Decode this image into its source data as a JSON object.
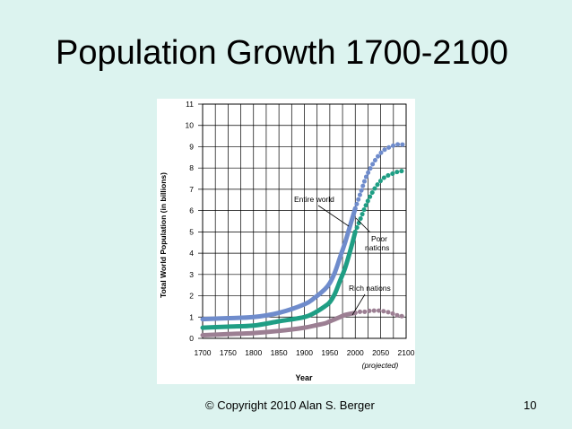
{
  "slide": {
    "title": "Population Growth 1700-2100",
    "footer": "© Copyright 2010 Alan S. Berger",
    "page_number": "10"
  },
  "chart_data": {
    "type": "line",
    "title": "",
    "xlabel": "Year",
    "ylabel": "Total World Population (in billions)",
    "xlim": [
      1700,
      2100
    ],
    "ylim": [
      0,
      11
    ],
    "x_ticks": [
      1700,
      1750,
      1800,
      1850,
      1900,
      1950,
      2000,
      2050,
      2100
    ],
    "y_ticks": [
      0,
      1,
      2,
      3,
      4,
      5,
      6,
      7,
      8,
      9,
      10,
      11
    ],
    "grid": true,
    "projected_label": "(projected)",
    "projected_from": 2000,
    "series": [
      {
        "name": "Entire world",
        "color": "#6f8ccc",
        "x": [
          1700,
          1750,
          1800,
          1850,
          1900,
          1920,
          1940,
          1950,
          1960,
          1970,
          1980,
          1990,
          2000,
          2010,
          2020,
          2030,
          2040,
          2050,
          2060,
          2070,
          2080,
          2090,
          2100
        ],
        "y": [
          0.9,
          0.95,
          1.0,
          1.2,
          1.6,
          1.9,
          2.3,
          2.6,
          3.1,
          3.8,
          4.5,
          5.3,
          6.1,
          6.8,
          7.5,
          8.0,
          8.4,
          8.7,
          8.9,
          9.0,
          9.1,
          9.1,
          9.1
        ]
      },
      {
        "name": "Poor nations",
        "color": "#1f9e84",
        "x": [
          1700,
          1750,
          1800,
          1850,
          1900,
          1920,
          1940,
          1950,
          1960,
          1970,
          1980,
          1990,
          2000,
          2010,
          2020,
          2030,
          2040,
          2050,
          2060,
          2070,
          2080,
          2090,
          2100
        ],
        "y": [
          0.5,
          0.55,
          0.6,
          0.8,
          1.0,
          1.2,
          1.5,
          1.7,
          2.1,
          2.7,
          3.3,
          4.1,
          5.0,
          5.6,
          6.2,
          6.7,
          7.1,
          7.4,
          7.6,
          7.7,
          7.8,
          7.85,
          7.9
        ]
      },
      {
        "name": "Rich nations",
        "color": "#9c7f93",
        "x": [
          1700,
          1750,
          1800,
          1850,
          1900,
          1920,
          1940,
          1950,
          1960,
          1970,
          1980,
          1990,
          2000,
          2010,
          2020,
          2030,
          2040,
          2050,
          2060,
          2070,
          2080,
          2090,
          2100
        ],
        "y": [
          0.15,
          0.2,
          0.25,
          0.35,
          0.5,
          0.6,
          0.7,
          0.8,
          0.9,
          1.0,
          1.1,
          1.15,
          1.2,
          1.25,
          1.25,
          1.3,
          1.3,
          1.3,
          1.25,
          1.2,
          1.1,
          1.05,
          1.0
        ]
      }
    ],
    "annotations": {
      "entire_world": "Entire world",
      "poor_1": "Poor",
      "poor_2": "nations",
      "rich": "Rich nations"
    }
  }
}
